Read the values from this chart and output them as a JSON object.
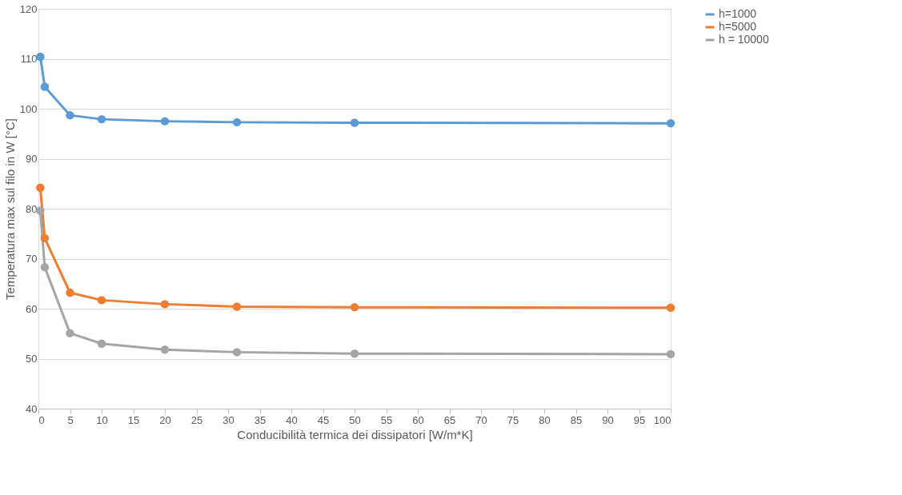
{
  "chart_data": {
    "type": "line",
    "xlabel": "Conducibilità termica dei dissipatori [W/m*K]",
    "ylabel": "Temperatura max sul filo in W [°C]",
    "x": [
      0.3,
      1,
      5,
      10,
      20,
      31.4,
      50,
      100
    ],
    "series": [
      {
        "name": "h=1000",
        "color": "#5b9bd5",
        "values": [
          110.4,
          104.4,
          98.7,
          97.9,
          97.5,
          97.3,
          97.2,
          97.1
        ]
      },
      {
        "name": "h=5000",
        "color": "#ed7d31",
        "values": [
          84.2,
          74.1,
          63.2,
          61.7,
          60.9,
          60.4,
          60.3,
          60.2
        ]
      },
      {
        "name": "h = 10000",
        "color": "#a5a5a5",
        "values": [
          79.6,
          68.3,
          55.1,
          53.0,
          51.8,
          51.3,
          51.0,
          50.9
        ]
      }
    ],
    "xlim": [
      0,
      100
    ],
    "xticks": [
      0,
      5,
      10,
      15,
      20,
      25,
      30,
      35,
      40,
      45,
      50,
      55,
      60,
      65,
      70,
      75,
      80,
      85,
      90,
      95,
      100
    ],
    "ylim": [
      40,
      120
    ],
    "yticks": [
      40,
      50,
      60,
      70,
      80,
      90,
      100,
      110,
      120
    ],
    "grid": "y",
    "legend": "right",
    "marker": "circle",
    "line_style": "solid"
  }
}
